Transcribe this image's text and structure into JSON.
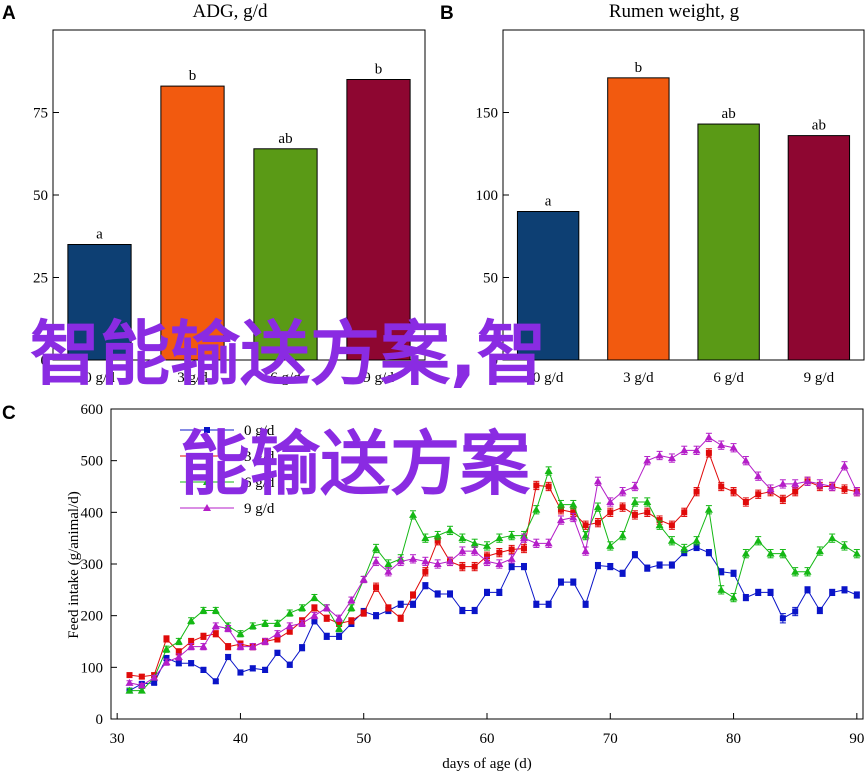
{
  "chart_data": [
    {
      "panel": "A",
      "type": "bar",
      "title": "ADG, g/d",
      "categories": [
        "0 g/d",
        "3 g/d",
        "6 g/d",
        "9 g/d"
      ],
      "values": [
        35,
        83,
        64,
        85
      ],
      "bar_labels": [
        "a",
        "b",
        "ab",
        "b"
      ],
      "colors": [
        "#0d3f73",
        "#f25a0f",
        "#5a9a16",
        "#8e0631"
      ],
      "ylim": [
        0,
        100
      ],
      "yticks": [
        0,
        25,
        50,
        75
      ]
    },
    {
      "panel": "B",
      "type": "bar",
      "title": "Rumen weight, g",
      "categories": [
        "0 g/d",
        "3 g/d",
        "6 g/d",
        "9 g/d"
      ],
      "values": [
        90,
        171,
        143,
        136
      ],
      "bar_labels": [
        "a",
        "b",
        "ab",
        "ab"
      ],
      "colors": [
        "#0d3f73",
        "#f25a0f",
        "#5a9a16",
        "#8e0631"
      ],
      "ylim": [
        0,
        200
      ],
      "yticks": [
        0,
        50,
        100,
        150
      ]
    },
    {
      "panel": "C",
      "type": "line",
      "xlabel": "days of age (d)",
      "ylabel": "Feed intake (g/animal/d)",
      "xlim": [
        29.5,
        90.5
      ],
      "ylim": [
        0,
        600
      ],
      "xticks": [
        30,
        40,
        50,
        60,
        70,
        80,
        90
      ],
      "yticks": [
        0,
        100,
        200,
        300,
        400,
        500,
        600
      ],
      "x": [
        31,
        32,
        33,
        34,
        35,
        36,
        37,
        38,
        39,
        40,
        41,
        42,
        43,
        44,
        45,
        46,
        47,
        48,
        49,
        50,
        51,
        52,
        53,
        54,
        55,
        56,
        57,
        58,
        59,
        60,
        61,
        62,
        63,
        64,
        65,
        66,
        67,
        68,
        69,
        70,
        71,
        72,
        73,
        74,
        75,
        76,
        77,
        78,
        79,
        80,
        81,
        82,
        83,
        84,
        85,
        86,
        87,
        88,
        89,
        90
      ],
      "series": [
        {
          "name": "0 g/d",
          "color": "#0a14c8",
          "marker": "square",
          "values": [
            55,
            68,
            70,
            118,
            108,
            108,
            95,
            73,
            120,
            90,
            98,
            95,
            128,
            105,
            138,
            190,
            160,
            160,
            185,
            208,
            200,
            210,
            222,
            222,
            258,
            242,
            242,
            210,
            210,
            245,
            245,
            295,
            295,
            222,
            222,
            265,
            265,
            222,
            297,
            295,
            282,
            318,
            292,
            298,
            298,
            322,
            332,
            322,
            285,
            282,
            235,
            245,
            245,
            195,
            208,
            250,
            210,
            245,
            250,
            240
          ],
          "error": [
            3,
            3,
            3,
            5,
            5,
            5,
            5,
            4,
            5,
            5,
            5,
            5,
            5,
            5,
            6,
            6,
            6,
            6,
            6,
            6,
            6,
            6,
            6,
            6,
            6,
            6,
            6,
            6,
            6,
            6,
            6,
            6,
            6,
            6,
            6,
            6,
            6,
            6,
            6,
            6,
            6,
            6,
            6,
            6,
            6,
            6,
            6,
            6,
            6,
            6,
            6,
            6,
            6,
            9,
            8,
            6,
            6,
            6,
            6,
            6
          ]
        },
        {
          "name": "3 g/d",
          "color": "#e00a0a",
          "marker": "square",
          "values": [
            85,
            82,
            85,
            155,
            130,
            150,
            160,
            165,
            140,
            145,
            140,
            150,
            155,
            170,
            190,
            215,
            195,
            185,
            190,
            205,
            255,
            215,
            195,
            240,
            285,
            345,
            305,
            295,
            295,
            315,
            322,
            328,
            330,
            452,
            450,
            405,
            400,
            375,
            380,
            400,
            410,
            395,
            400,
            385,
            375,
            400,
            440,
            515,
            450,
            440,
            420,
            435,
            440,
            425,
            440,
            460,
            450,
            450,
            445,
            440
          ],
          "error": [
            4,
            4,
            4,
            6,
            6,
            6,
            6,
            6,
            6,
            6,
            6,
            6,
            6,
            6,
            6,
            6,
            6,
            6,
            6,
            6,
            8,
            6,
            6,
            6,
            8,
            8,
            8,
            8,
            8,
            8,
            8,
            8,
            8,
            8,
            8,
            8,
            8,
            8,
            8,
            8,
            8,
            8,
            8,
            8,
            8,
            8,
            8,
            8,
            8,
            8,
            8,
            8,
            8,
            8,
            8,
            8,
            8,
            8,
            8,
            8
          ]
        },
        {
          "name": "6 g/d",
          "color": "#14b814",
          "marker": "triangle",
          "values": [
            55,
            55,
            80,
            135,
            150,
            190,
            210,
            210,
            180,
            165,
            180,
            185,
            185,
            205,
            215,
            235,
            215,
            175,
            215,
            270,
            330,
            300,
            310,
            395,
            350,
            355,
            365,
            350,
            340,
            335,
            350,
            355,
            355,
            405,
            480,
            415,
            415,
            355,
            410,
            335,
            355,
            420,
            420,
            375,
            345,
            330,
            345,
            405,
            250,
            235,
            320,
            345,
            320,
            320,
            285,
            285,
            325,
            350,
            335,
            320
          ],
          "error": [
            4,
            4,
            4,
            6,
            6,
            6,
            6,
            6,
            6,
            6,
            6,
            6,
            6,
            6,
            6,
            6,
            6,
            6,
            6,
            6,
            8,
            8,
            8,
            8,
            8,
            8,
            8,
            8,
            8,
            8,
            8,
            8,
            8,
            8,
            8,
            8,
            8,
            8,
            8,
            8,
            8,
            8,
            8,
            8,
            8,
            8,
            8,
            8,
            8,
            8,
            8,
            8,
            8,
            8,
            8,
            8,
            8,
            8,
            8,
            8
          ]
        },
        {
          "name": "9 g/d",
          "color": "#b41ec8",
          "marker": "triangle",
          "values": [
            70,
            65,
            80,
            110,
            120,
            140,
            140,
            180,
            175,
            140,
            140,
            150,
            165,
            180,
            185,
            200,
            215,
            195,
            230,
            270,
            305,
            285,
            305,
            310,
            305,
            300,
            305,
            325,
            325,
            305,
            300,
            310,
            350,
            340,
            340,
            385,
            390,
            325,
            460,
            420,
            440,
            450,
            500,
            510,
            505,
            520,
            520,
            545,
            530,
            525,
            500,
            470,
            445,
            455,
            455,
            460,
            455,
            450,
            490,
            440
          ],
          "error": [
            4,
            4,
            4,
            6,
            6,
            6,
            6,
            6,
            6,
            6,
            6,
            6,
            6,
            6,
            6,
            6,
            6,
            6,
            6,
            6,
            8,
            8,
            8,
            8,
            8,
            8,
            8,
            8,
            8,
            8,
            8,
            8,
            8,
            8,
            8,
            8,
            8,
            8,
            8,
            8,
            8,
            8,
            8,
            8,
            8,
            8,
            8,
            8,
            8,
            8,
            8,
            8,
            8,
            8,
            8,
            8,
            8,
            8,
            8,
            8
          ]
        }
      ]
    }
  ],
  "watermark": {
    "line1": "智能输送方案,智",
    "line2": "能输送方案"
  }
}
